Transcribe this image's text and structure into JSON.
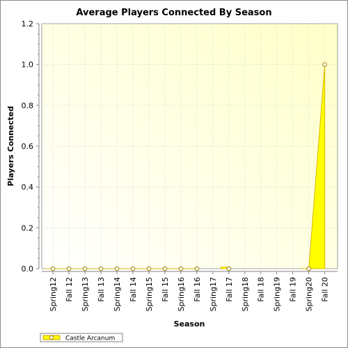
{
  "chart_data": {
    "type": "area",
    "title": "Average Players Connected By Season",
    "xlabel": "Season",
    "ylabel": "Players Connected",
    "categories": [
      "Spring12",
      "Fall 12",
      "Spring13",
      "Fall 13",
      "Spring14",
      "Fall 14",
      "Spring15",
      "Fall 15",
      "Spring16",
      "Fall 16",
      "Spring17",
      "Fall 17",
      "Spring18",
      "Fall 18",
      "Spring19",
      "Fall 19",
      "Spring20",
      "Fall 20"
    ],
    "ylim": [
      0,
      1.2
    ],
    "yticks": [
      0.0,
      0.2,
      0.4,
      0.6,
      0.8,
      1.0,
      1.2
    ],
    "ytick_labels": [
      "0.0",
      "0.2",
      "0.4",
      "0.6",
      "0.8",
      "1.0",
      "1.2"
    ],
    "grid": true,
    "legend_position": "bottom-left",
    "series": [
      {
        "name": "Castle Arcanum",
        "color": "#ffff00",
        "values": [
          0,
          0,
          0,
          0,
          0,
          0,
          0,
          0,
          0,
          0,
          null,
          0,
          null,
          null,
          null,
          null,
          0,
          1.0
        ]
      }
    ]
  }
}
